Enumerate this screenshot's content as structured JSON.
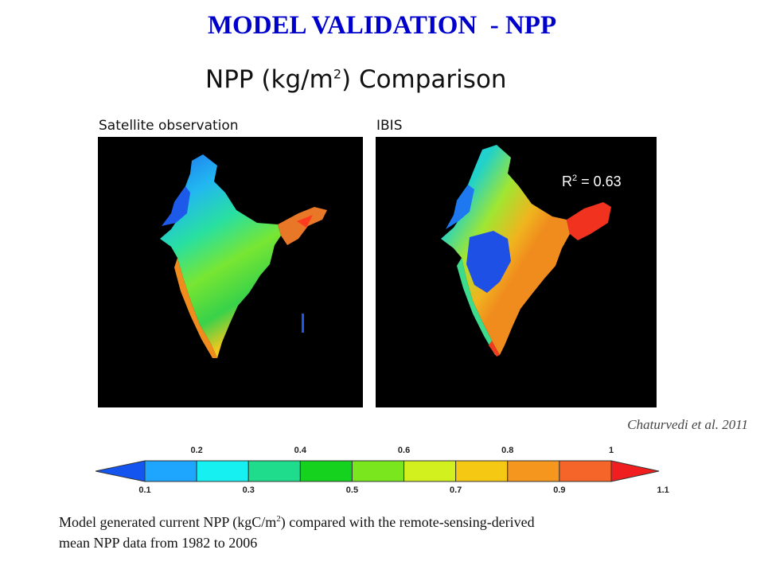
{
  "slide_title": "MODEL VALIDATION  - NPP",
  "figure_title": {
    "text": "NPP (kg/m",
    "sup": "2",
    "tail": ") Comparison"
  },
  "panels": [
    {
      "label": "Satellite observation"
    },
    {
      "label": "IBIS"
    }
  ],
  "r_squared": {
    "prefix": "R",
    "sup": "2",
    "suffix": " = 0.63"
  },
  "citation": "Chaturvedi et al. 2011",
  "colorbar": {
    "colors": [
      "#1455f0",
      "#1ea6ff",
      "#16f0f0",
      "#1edc8c",
      "#14d21e",
      "#7ae61e",
      "#d2f01e",
      "#f5c814",
      "#f5961e",
      "#f56428",
      "#f01e1e"
    ],
    "top_labels": [
      "0.2",
      "0.4",
      "0.6",
      "0.8",
      "1"
    ],
    "bottom_labels": [
      "0.1",
      "0.3",
      "0.5",
      "0.7",
      "0.9",
      "1.1"
    ]
  },
  "caption": {
    "line1_pre": " Model generated current NPP (kgC/m",
    "line1_sup": "2",
    "line1_post": ") compared with the remote-sensing-derived",
    "line2": "mean NPP data from 1982 to 2006"
  }
}
